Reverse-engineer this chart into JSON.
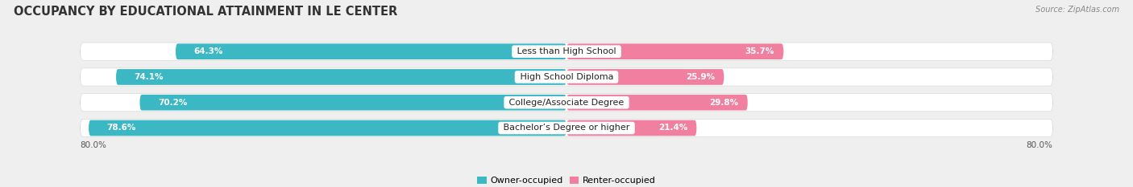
{
  "title": "OCCUPANCY BY EDUCATIONAL ATTAINMENT IN LE CENTER",
  "source": "Source: ZipAtlas.com",
  "categories": [
    "Less than High School",
    "High School Diploma",
    "College/Associate Degree",
    "Bachelor’s Degree or higher"
  ],
  "owner_values": [
    64.3,
    74.1,
    70.2,
    78.6
  ],
  "renter_values": [
    35.7,
    25.9,
    29.8,
    21.4
  ],
  "owner_color": "#3BB8C3",
  "renter_color": "#F07FA0",
  "owner_label": "Owner-occupied",
  "renter_label": "Renter-occupied",
  "axis_left_label": "80.0%",
  "axis_right_label": "80.0%",
  "background_color": "#EFEFEF",
  "bar_background": "#FFFFFF",
  "row_bg_color": "#E8E8E8",
  "title_fontsize": 10.5,
  "label_fontsize": 8,
  "value_fontsize": 7.5,
  "legend_fontsize": 8
}
